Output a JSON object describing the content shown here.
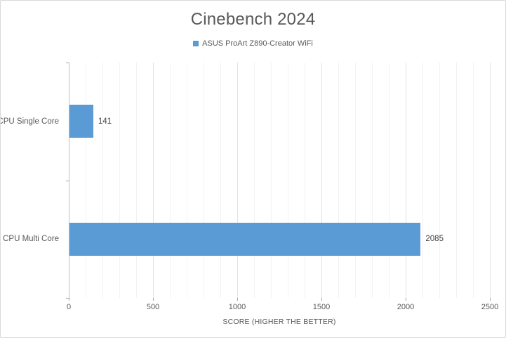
{
  "chart_data": {
    "type": "bar",
    "orientation": "horizontal",
    "title": "Cinebench 2024",
    "categories": [
      "CPU Single Core",
      "CPU Multi Core"
    ],
    "series": [
      {
        "name": "ASUS ProArt Z890-Creator WiFi",
        "values": [
          141,
          2085
        ],
        "color": "#5B9BD5"
      }
    ],
    "value_labels": [
      "141",
      "2085"
    ],
    "xlabel": "SCORE (HIGHER THE BETTER)",
    "xlim": [
      0,
      2500
    ],
    "x_ticks": [
      0,
      500,
      1000,
      1500,
      2000,
      2500
    ],
    "minor_grid_step": 100,
    "grid": true,
    "legend_position": "top"
  },
  "colors": {
    "bar": "#5B9BD5",
    "title_text": "#595959",
    "axis_text": "#595959",
    "value_text": "#404040",
    "major_grid": "#e2e2e2",
    "minor_grid": "#f2f2f2",
    "axis_line": "#bfbfbf",
    "tick": "#a6a6a6",
    "border": "#d9d9d9"
  }
}
